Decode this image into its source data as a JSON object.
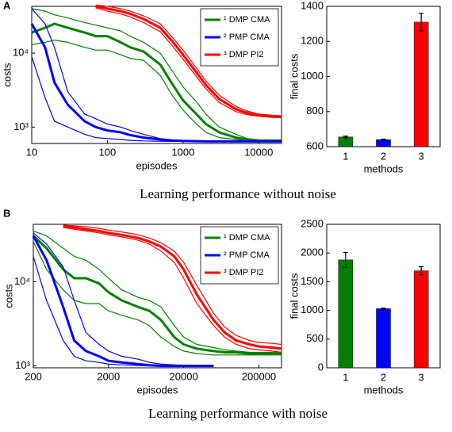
{
  "panels": [
    {
      "label": "A",
      "caption": "Learning performance without noise"
    },
    {
      "label": "B",
      "caption": "Learning performance with noise"
    }
  ],
  "chart_data": [
    {
      "type": "line",
      "xscale": "log",
      "yscale": "log",
      "xlabel": "episodes",
      "ylabel": "costs",
      "legend": "upper right",
      "xlim": [
        10,
        20000
      ],
      "ylim": [
        600,
        43000
      ],
      "xticks": [
        10,
        100,
        1000,
        10000
      ],
      "yticks": [
        {
          "value": 1000,
          "label": "10³"
        },
        {
          "value": 10000,
          "label": "10⁴"
        }
      ],
      "x": [
        10,
        15,
        20,
        30,
        50,
        70,
        100,
        150,
        200,
        300,
        500,
        700,
        1000,
        1500,
        2000,
        3000,
        5000,
        7000,
        10000,
        15000,
        20000
      ],
      "series": [
        {
          "name": "¹ DMP CMA",
          "color": "#008000",
          "values": [
            19000,
            22000,
            25000,
            22000,
            19000,
            17000,
            17000,
            14000,
            12000,
            10500,
            7000,
            4000,
            2300,
            1500,
            1100,
            850,
            720,
            680,
            660,
            655,
            655
          ],
          "upper": [
            40000,
            37000,
            33000,
            30000,
            26000,
            24000,
            22000,
            20000,
            17000,
            14000,
            10000,
            6000,
            3500,
            2200,
            1500,
            1000,
            800,
            700,
            670,
            660,
            660
          ],
          "lower": [
            13000,
            14000,
            15000,
            14000,
            12000,
            11000,
            11000,
            9500,
            8500,
            8000,
            5000,
            2800,
            1700,
            1100,
            850,
            720,
            680,
            660,
            650,
            650,
            650
          ]
        },
        {
          "name": "² PMP CMA",
          "color": "#0000ff",
          "values": [
            25000,
            12000,
            4000,
            2000,
            1200,
            1000,
            900,
            850,
            780,
            720,
            680,
            660,
            650,
            645,
            640,
            640,
            640,
            640,
            640,
            640,
            640
          ],
          "upper": [
            40000,
            25000,
            12000,
            3000,
            1500,
            1300,
            1100,
            1000,
            900,
            800,
            700,
            670,
            655,
            650,
            645,
            640,
            640,
            640,
            640,
            640,
            640
          ],
          "lower": [
            9000,
            2500,
            1200,
            1000,
            800,
            720,
            700,
            680,
            660,
            650,
            645,
            640,
            640,
            640,
            640,
            640,
            640,
            640,
            640,
            640,
            640
          ]
        },
        {
          "name": "³ DMP PI2",
          "color": "#ff0000",
          "values": [
            null,
            null,
            null,
            null,
            null,
            43000,
            40000,
            37000,
            34000,
            29000,
            22000,
            15000,
            9500,
            5500,
            3700,
            2400,
            1750,
            1550,
            1450,
            1400,
            1380
          ],
          "upper": [
            null,
            null,
            null,
            null,
            null,
            45000,
            43000,
            40000,
            37000,
            32000,
            25000,
            17000,
            11000,
            6300,
            4200,
            2700,
            1900,
            1650,
            1500,
            1450,
            1420
          ],
          "lower": [
            null,
            null,
            null,
            null,
            null,
            41000,
            37000,
            34000,
            31000,
            26000,
            19500,
            13000,
            8300,
            4800,
            3300,
            2150,
            1620,
            1470,
            1400,
            1350,
            1340
          ]
        }
      ]
    },
    {
      "type": "bar",
      "xlabel": "methods",
      "ylabel": "final costs",
      "categories": [
        "1",
        "2",
        "3"
      ],
      "values": [
        655,
        640,
        1310
      ],
      "errors": [
        5,
        3,
        50
      ],
      "colors": [
        "#008000",
        "#0000ff",
        "#ff0000"
      ],
      "ylim": [
        600,
        1400
      ],
      "yticks": [
        600,
        800,
        1000,
        1200,
        1400
      ]
    },
    {
      "type": "line",
      "xscale": "log",
      "yscale": "log",
      "xlabel": "episodes",
      "ylabel": "costs",
      "legend": "upper right",
      "xlim": [
        200,
        400000
      ],
      "ylim": [
        950,
        48000
      ],
      "xticks": [
        200,
        2000,
        20000,
        200000
      ],
      "yticks": [
        {
          "value": 1000,
          "label": "10³"
        },
        {
          "value": 10000,
          "label": "10⁴"
        }
      ],
      "x": [
        200,
        300,
        500,
        700,
        1000,
        1500,
        2000,
        3000,
        5000,
        7000,
        10000,
        15000,
        20000,
        30000,
        50000,
        70000,
        100000,
        150000,
        200000,
        300000,
        400000
      ],
      "series": [
        {
          "name": "¹ DMP CMA",
          "color": "#008000",
          "values": [
            35000,
            25000,
            14000,
            11000,
            11000,
            9500,
            7500,
            6000,
            5000,
            4500,
            3500,
            2200,
            1800,
            1600,
            1500,
            1450,
            1450,
            1400,
            1400,
            1400,
            1400
          ],
          "upper": [
            40000,
            35000,
            25000,
            20000,
            18000,
            14000,
            11000,
            8000,
            6500,
            6000,
            5000,
            3000,
            2200,
            1800,
            1650,
            1550,
            1500,
            1450,
            1450,
            1450,
            1450
          ],
          "lower": [
            30000,
            14000,
            8000,
            6000,
            5500,
            5500,
            4500,
            4000,
            3500,
            3000,
            2200,
            1700,
            1500,
            1400,
            1350,
            1350,
            1350,
            1350,
            1350,
            1350,
            1350
          ]
        },
        {
          "name": "² PMP CMA",
          "color": "#0000ff",
          "values": [
            35000,
            18000,
            5000,
            2000,
            1500,
            1300,
            1150,
            1100,
            1050,
            1020,
            1000,
            1000,
            1000,
            1000,
            1000,
            null,
            null,
            null,
            null,
            null,
            null
          ],
          "upper": [
            38000,
            28000,
            15000,
            6000,
            2500,
            1800,
            1500,
            1300,
            1200,
            1100,
            1050,
            1030,
            1020,
            1010,
            1000,
            null,
            null,
            null,
            null,
            null,
            null
          ],
          "lower": [
            20000,
            6000,
            2000,
            1300,
            1150,
            1100,
            1050,
            1030,
            1010,
            1000,
            1000,
            1000,
            1000,
            1000,
            1000,
            null,
            null,
            null,
            null,
            null,
            null
          ]
        },
        {
          "name": "³ DMP PI2",
          "color": "#ff0000",
          "values": [
            null,
            null,
            46000,
            44000,
            42000,
            40000,
            38000,
            36000,
            33000,
            30000,
            26000,
            20000,
            14000,
            7000,
            3500,
            2500,
            2000,
            1800,
            1700,
            1650,
            1600
          ],
          "upper": [
            null,
            null,
            47000,
            46000,
            45000,
            43000,
            41000,
            39000,
            36000,
            33000,
            29000,
            23000,
            17000,
            9000,
            4200,
            2900,
            2300,
            2000,
            1900,
            1850,
            1800
          ],
          "lower": [
            null,
            null,
            44000,
            42000,
            40000,
            38000,
            36000,
            34000,
            31000,
            28000,
            23000,
            17000,
            11000,
            5500,
            3000,
            2200,
            1800,
            1600,
            1550,
            1500,
            1450
          ]
        }
      ]
    },
    {
      "type": "bar",
      "xlabel": "methods",
      "ylabel": "final costs",
      "categories": [
        "1",
        "2",
        "3"
      ],
      "values": [
        1880,
        1030,
        1690
      ],
      "errors": [
        130,
        10,
        70
      ],
      "colors": [
        "#008000",
        "#0000ff",
        "#ff0000"
      ],
      "ylim": [
        0,
        2500
      ],
      "yticks": [
        0,
        500,
        1000,
        1500,
        2000,
        2500
      ]
    }
  ]
}
